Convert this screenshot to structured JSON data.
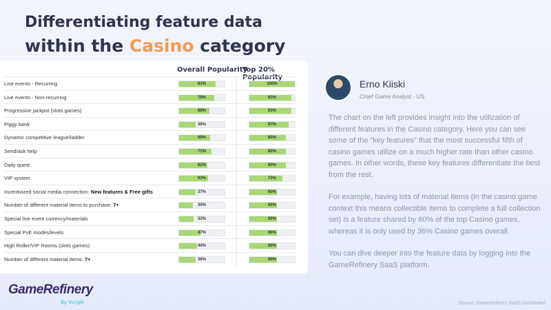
{
  "title": {
    "line1": "Differentiating feature data",
    "line2_prefix": "within the ",
    "line2_accent": "Casino",
    "line2_suffix": " category"
  },
  "table": {
    "col_overall": "Overall Popularity",
    "col_top": "Top 20% Popularity",
    "rows": [
      {
        "label": "Live events - Recurring",
        "bold": "",
        "overall": 81,
        "top": 100,
        "overall_label": "81%",
        "top_label": "100%"
      },
      {
        "label": "Live events - Non-recurring",
        "bold": "",
        "overall": 78,
        "top": 93,
        "overall_label": "78%",
        "top_label": "93%"
      },
      {
        "label": "Progressive jackpot (slots games)",
        "bold": "",
        "overall": 66,
        "top": 93,
        "overall_label": "66%",
        "top_label": "93%"
      },
      {
        "label": "Piggy bank",
        "bold": "",
        "overall": 36,
        "top": 87,
        "overall_label": "36%",
        "top_label": "87%"
      },
      {
        "label": "Dynamic competitive league/ladder",
        "bold": "",
        "overall": 68,
        "top": 80,
        "overall_label": "68%",
        "top_label": "80%"
      },
      {
        "label": "Send/ask help",
        "bold": "",
        "overall": 71,
        "top": 80,
        "overall_label": "71%",
        "top_label": "80%"
      },
      {
        "label": "Daily quest",
        "bold": "",
        "overall": 62,
        "top": 80,
        "overall_label": "62%",
        "top_label": "80%"
      },
      {
        "label": "VIP system",
        "bold": "",
        "overall": 63,
        "top": 73,
        "overall_label": "63%",
        "top_label": "73%"
      },
      {
        "label": "Incentivized social media connection: ",
        "bold": "New features & Free gifts",
        "overall": 37,
        "top": 60,
        "overall_label": "37%",
        "top_label": "60%"
      },
      {
        "label": "Number of different material items to purchase: ",
        "bold": "7+",
        "overall": 30,
        "top": 60,
        "overall_label": "30%",
        "top_label": "60%"
      },
      {
        "label": "Special live event currency/materials",
        "bold": "",
        "overall": 32,
        "top": 60,
        "overall_label": "32%",
        "top_label": "60%"
      },
      {
        "label": "Special PvE modes/levels",
        "bold": "",
        "overall": 47,
        "top": 60,
        "overall_label": "47%",
        "top_label": "60%"
      },
      {
        "label": "High Roller/VIP Rooms (slots games)",
        "bold": "",
        "overall": 40,
        "top": 60,
        "overall_label": "40%",
        "top_label": "60%"
      },
      {
        "label": "Number of different material items: ",
        "bold": "7+",
        "overall": 36,
        "top": 60,
        "overall_label": "36%",
        "top_label": "60%"
      }
    ]
  },
  "person": {
    "name": "Erno Kiiski",
    "role": "Chief Game Analyst - US"
  },
  "body": {
    "p1": "The chart on the left provides insight into the utilization of different features in the Casino category. Here you can see some of the “key features” that the most successful fifth of casino games utilize on a much higher rate than other casino games. In other words, these key features differentiate the best from the rest.",
    "p2": "For example, having lots of material items (in the casino game context this means collectible items to complete a full collection set) is a feature shared by 60% of the top Casino games, whereas it is only used by 36% Casino games overall.",
    "p3": "You can dive deeper into the feature data by logging into the GameRefinery SaaS platform."
  },
  "logo": {
    "name": "GameRefinery",
    "by": "By Vungle"
  },
  "source": "Source: GameRefinery SaaS Dashboard",
  "colors": {
    "accent": "#f49a52",
    "bar": "#a9d774",
    "title": "#2f3450"
  }
}
